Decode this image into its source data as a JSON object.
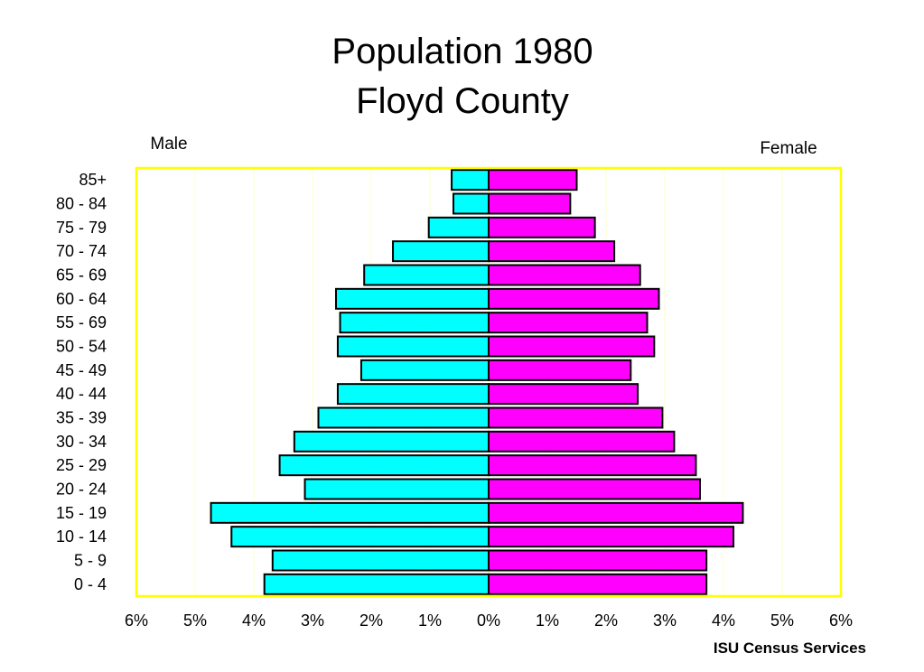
{
  "chart_data": {
    "type": "bar",
    "orientation": "horizontal",
    "title_lines": [
      "Population 1980",
      "Floyd County"
    ],
    "male_label": "Male",
    "female_label": "Female",
    "categories": [
      "85+",
      "80 - 84",
      "75 - 79",
      "70 - 74",
      "65 - 69",
      "60 - 64",
      "55 - 69",
      "50 - 54",
      "45 - 49",
      "40 - 44",
      "35 - 39",
      "30 - 34",
      "25 - 29",
      "20 - 24",
      "15 - 19",
      "10 - 14",
      "5 - 9",
      "0 - 4"
    ],
    "series": [
      {
        "name": "Male",
        "values": [
          0.63,
          0.6,
          1.02,
          1.63,
          2.12,
          2.6,
          2.53,
          2.57,
          2.17,
          2.57,
          2.9,
          3.31,
          3.56,
          3.13,
          4.73,
          4.38,
          3.68,
          3.82
        ]
      },
      {
        "name": "Female",
        "values": [
          1.5,
          1.39,
          1.81,
          2.14,
          2.58,
          2.9,
          2.7,
          2.82,
          2.42,
          2.54,
          2.96,
          3.16,
          3.53,
          3.6,
          4.33,
          4.17,
          3.71,
          3.71
        ]
      }
    ],
    "xlim": [
      -6,
      6
    ],
    "x_ticks": [
      -6,
      -5,
      -4,
      -3,
      -2,
      -1,
      0,
      1,
      2,
      3,
      4,
      5,
      6
    ],
    "x_tick_labels": [
      "6%",
      "5%",
      "4%",
      "3%",
      "2%",
      "1%",
      "0%",
      "1%",
      "2%",
      "3%",
      "4%",
      "5%",
      "6%"
    ],
    "grid": "vertical",
    "colors": {
      "male": "#00ffff",
      "female": "#ff00ff",
      "frame": "#ffff00",
      "grid": "#ffffcc"
    }
  },
  "footer": {
    "credit": "ISU Census Services"
  }
}
